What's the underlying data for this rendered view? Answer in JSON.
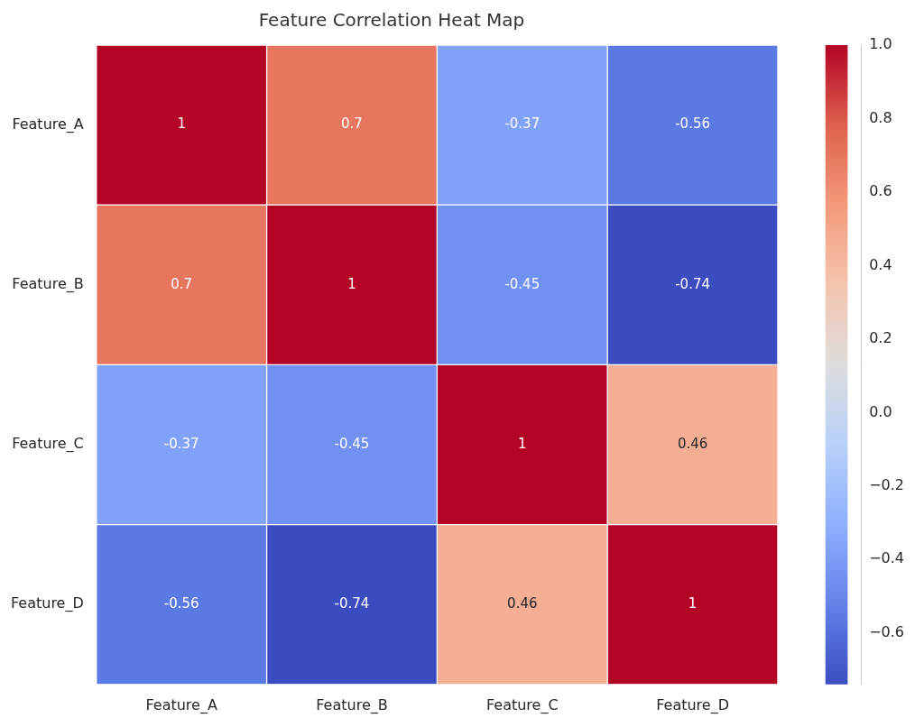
{
  "chart_data": {
    "type": "heatmap",
    "title": "Feature Correlation Heat Map",
    "x_categories": [
      "Feature_A",
      "Feature_B",
      "Feature_C",
      "Feature_D"
    ],
    "y_categories": [
      "Feature_A",
      "Feature_B",
      "Feature_C",
      "Feature_D"
    ],
    "cells": [
      [
        1,
        0.7,
        -0.37,
        -0.56
      ],
      [
        0.7,
        1,
        -0.45,
        -0.74
      ],
      [
        -0.37,
        -0.45,
        1,
        0.46
      ],
      [
        -0.56,
        -0.74,
        0.46,
        1
      ]
    ],
    "data_labels": true,
    "colorbar_range": [
      -0.74,
      1.0
    ],
    "colorbar_ticks": [
      {
        "value": -0.6,
        "label": "−0.6"
      },
      {
        "value": -0.4,
        "label": "−0.4"
      },
      {
        "value": -0.2,
        "label": "−0.2"
      },
      {
        "value": 0.0,
        "label": "0.0"
      },
      0.2,
      0.4,
      0.6,
      0.8,
      {
        "value": 1.0,
        "label": "1.0"
      }
    ]
  }
}
